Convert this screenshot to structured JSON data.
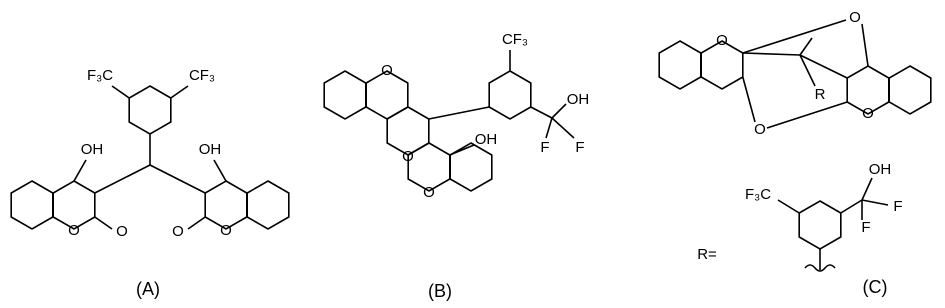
{
  "structures": [
    {
      "label": "(A)",
      "atoms": [
        "F₃C",
        "CF₃",
        "OH",
        "OH",
        "O",
        "O",
        "O",
        "O"
      ]
    },
    {
      "label": "(B)",
      "atoms": [
        "O",
        "O",
        "O",
        "CF₃",
        "OH",
        "F",
        "F",
        "OH"
      ]
    },
    {
      "label": "(C)",
      "atoms": [
        "O",
        "O",
        "O",
        "O",
        "R",
        "R=",
        "F₃C",
        "OH",
        "F",
        "F"
      ]
    }
  ]
}
